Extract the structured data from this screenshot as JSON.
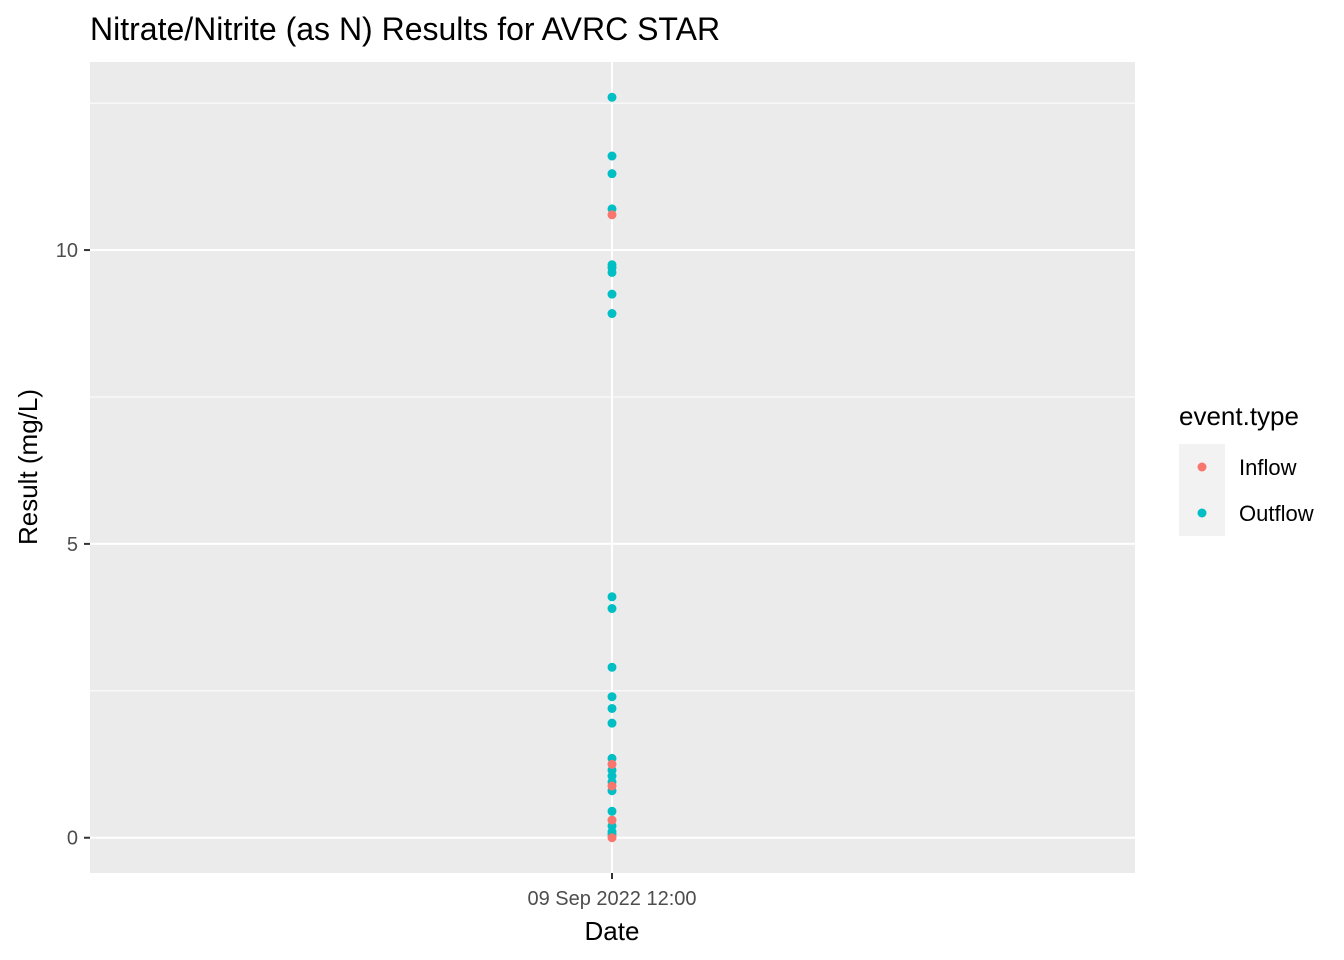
{
  "chart_data": {
    "type": "scatter",
    "title": "Nitrate/Nitrite (as N) Results for AVRC STAR",
    "xlabel": "Date",
    "ylabel": "Result (mg/L)",
    "x_ticks": [
      "09 Sep 2022 12:00"
    ],
    "y_ticks": [
      0,
      5,
      10
    ],
    "ylim": [
      -0.6,
      13.2
    ],
    "grid": true,
    "legend": {
      "title": "event.type",
      "position": "right",
      "entries": [
        {
          "label": "Inflow",
          "color": "#F8766D"
        },
        {
          "label": "Outflow",
          "color": "#00BFC4"
        }
      ]
    },
    "series": [
      {
        "name": "Outflow",
        "color": "#00BFC4",
        "x": "09 Sep 2022 12:00",
        "values": [
          12.6,
          11.6,
          11.3,
          10.7,
          9.75,
          9.7,
          9.62,
          9.25,
          8.92,
          4.1,
          3.9,
          2.9,
          2.4,
          2.2,
          1.95,
          1.35,
          1.15,
          1.05,
          0.95,
          0.8,
          0.45,
          0.2,
          0.1,
          0.05
        ]
      },
      {
        "name": "Inflow",
        "color": "#F8766D",
        "x": "09 Sep 2022 12:00",
        "values": [
          10.6,
          1.25,
          0.88,
          0.3,
          0.0
        ]
      }
    ]
  }
}
